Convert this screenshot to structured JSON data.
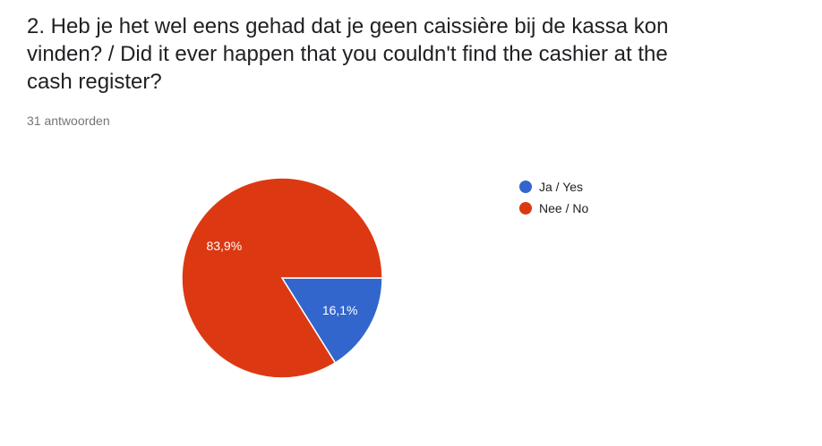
{
  "question": {
    "title": "2. Heb je het wel eens gehad dat je geen caissière bij de kassa kon vinden? / Did it ever happen that you couldn't find the cashier at the cash register?",
    "response_count": "31 antwoorden"
  },
  "chart_data": {
    "type": "pie",
    "categories": [
      "Ja / Yes",
      "Nee / No"
    ],
    "values": [
      16.1,
      83.9
    ],
    "data_labels": [
      "16,1%",
      "83,9%"
    ],
    "colors": [
      "#3366cc",
      "#dc3912"
    ],
    "legend_position": "right"
  }
}
